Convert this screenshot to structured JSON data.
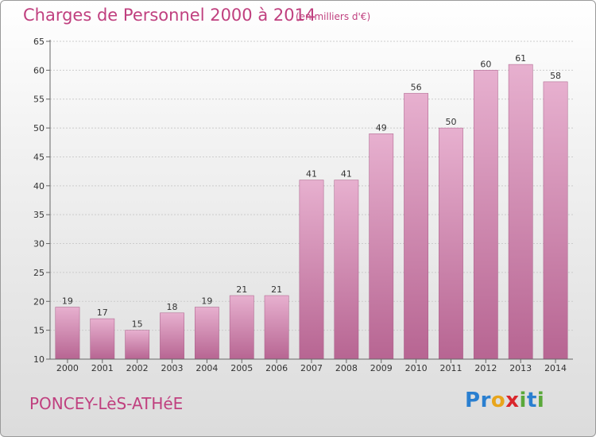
{
  "header": {
    "title": "Charges de Personnel 2000 à 2014",
    "subtitle": "(en milliers d'€)"
  },
  "footer": {
    "commune": "PONCEY-LèS-ATHéE",
    "logo_letters": [
      {
        "ch": "P",
        "color": "#2a7fd0"
      },
      {
        "ch": "r",
        "color": "#2a7fd0"
      },
      {
        "ch": "o",
        "color": "#e8a51c"
      },
      {
        "ch": "x",
        "color": "#d9262c"
      },
      {
        "ch": "i",
        "color": "#5aa83a"
      },
      {
        "ch": "t",
        "color": "#2a7fd0"
      },
      {
        "ch": "i",
        "color": "#5aa83a"
      }
    ]
  },
  "colors": {
    "bar": "#c97aa7",
    "bar_light": "#e7b0cf",
    "bar_dark": "#b76592",
    "grid": "#cccccc",
    "axis": "#666666",
    "text": "#c0407f"
  },
  "chart_data": {
    "type": "bar",
    "title": "Charges de Personnel 2000 à 2014",
    "subtitle": "(en milliers d'€)",
    "xlabel": "",
    "ylabel": "",
    "categories": [
      "2000",
      "2001",
      "2002",
      "2003",
      "2004",
      "2005",
      "2006",
      "2007",
      "2008",
      "2009",
      "2010",
      "2011",
      "2012",
      "2013",
      "2014"
    ],
    "values": [
      19,
      17,
      15,
      18,
      19,
      21,
      21,
      41,
      41,
      49,
      56,
      50,
      60,
      61,
      58
    ],
    "ylim": [
      10,
      65
    ],
    "yticks": [
      10,
      15,
      20,
      25,
      30,
      35,
      40,
      45,
      50,
      55,
      60,
      65
    ],
    "grid": true,
    "data_labels": true
  }
}
